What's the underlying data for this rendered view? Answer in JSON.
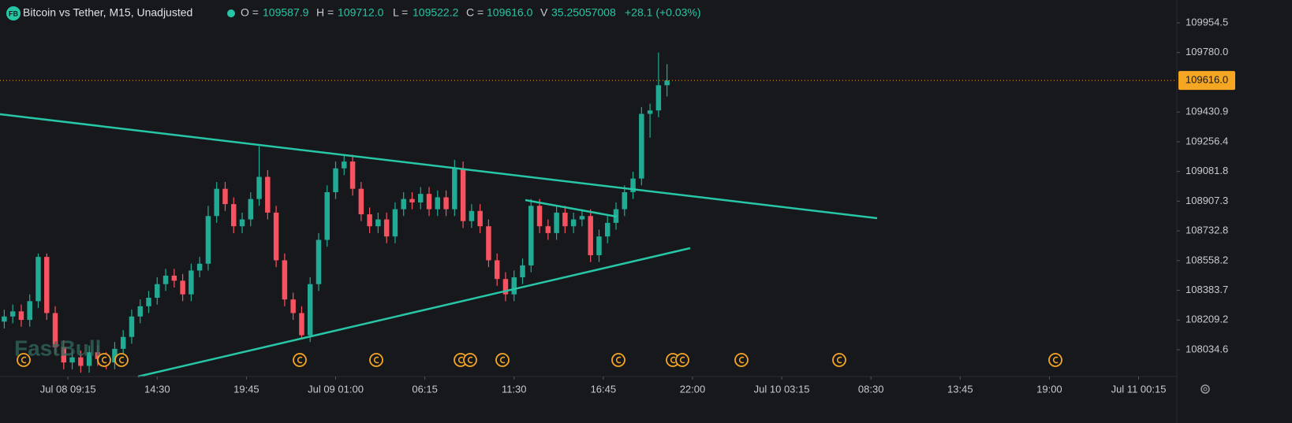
{
  "chart_data": {
    "type": "candlestick",
    "title": "Bitcoin vs Tether, M15, Unadjusted",
    "logo": "FB",
    "watermark": "FastBull",
    "header": {
      "open_label": "O =",
      "open": "109587.9",
      "high_label": "H =",
      "high": "109712.0",
      "low_label": "L =",
      "low": "109522.2",
      "close_label": "C =",
      "close": "109616.0",
      "volume_label": "V",
      "volume": "35.25057008",
      "change": "+28.1 (+0.03%)"
    },
    "up_color": "#22ab94",
    "down_color": "#f7525f",
    "line_color": "#26c6a6",
    "xlim": [
      -16,
      261
    ],
    "ylim": [
      107877.4,
      110088.7
    ],
    "xticks": [
      {
        "value": 0,
        "label": "Jul 08 09:15"
      },
      {
        "value": 21,
        "label": "14:30"
      },
      {
        "value": 42,
        "label": "19:45"
      },
      {
        "value": 63,
        "label": "Jul 09 01:00"
      },
      {
        "value": 84,
        "label": "06:15"
      },
      {
        "value": 105,
        "label": "11:30"
      },
      {
        "value": 126,
        "label": "16:45"
      },
      {
        "value": 147,
        "label": "22:00"
      },
      {
        "value": 168,
        "label": "Jul 10 03:15"
      },
      {
        "value": 189,
        "label": "08:30"
      },
      {
        "value": 210,
        "label": "13:45"
      },
      {
        "value": 231,
        "label": "19:00"
      },
      {
        "value": 252,
        "label": "Jul 11 00:15"
      }
    ],
    "yticks": [
      108034.6,
      108209.2,
      108383.7,
      108558.2,
      108732.8,
      108907.3,
      109081.8,
      109256.4,
      109430.9,
      {
        "value": 109780,
        "label": "109780.0"
      },
      109954.5
    ],
    "x": [
      -15,
      -13,
      -11,
      -9,
      -7,
      -5,
      -3,
      -1,
      1,
      3,
      5,
      7,
      9,
      11,
      13,
      15,
      17,
      19,
      21,
      23,
      25,
      27,
      29,
      31,
      33,
      35,
      37,
      39,
      41,
      43,
      45,
      47,
      49,
      51,
      53,
      55,
      57,
      59,
      61,
      63,
      65,
      67,
      69,
      71,
      73,
      75,
      77,
      79,
      81,
      83,
      85,
      87,
      89,
      91,
      93,
      95,
      97,
      99,
      101,
      103,
      105,
      107,
      109,
      111,
      113,
      115,
      117,
      119,
      121,
      123,
      125,
      127,
      129,
      131,
      133,
      135,
      137,
      139,
      141
    ],
    "open": [
      108200,
      108230,
      108260,
      108210,
      108320,
      108580,
      108250,
      108050,
      107960,
      107990,
      107940,
      108020,
      107980,
      107960,
      108040,
      108110,
      108230,
      108290,
      108340,
      108420,
      108470,
      108440,
      108360,
      108500,
      108540,
      108820,
      108980,
      108890,
      108760,
      108800,
      108920,
      109050,
      108840,
      108560,
      108330,
      108250,
      108120,
      108420,
      108680,
      108960,
      109100,
      109140,
      108980,
      108830,
      108760,
      108800,
      108700,
      108860,
      108920,
      108900,
      108950,
      108860,
      108930,
      108860,
      109100,
      108790,
      108850,
      108760,
      108560,
      108450,
      108360,
      108460,
      108530,
      108880,
      108760,
      108720,
      108840,
      108760,
      108800,
      108820,
      108590,
      108700,
      108780,
      108860,
      108960,
      109040,
      109420,
      109440,
      109587.9
    ],
    "high": [
      108270,
      108300,
      108300,
      108360,
      108600,
      108600,
      108290,
      108090,
      108030,
      108030,
      108060,
      108060,
      108020,
      108080,
      108150,
      108270,
      108330,
      108380,
      108460,
      108510,
      108510,
      108480,
      108540,
      108580,
      108880,
      109020,
      109020,
      108930,
      108840,
      108960,
      109230,
      109090,
      108880,
      108600,
      108370,
      108290,
      108460,
      108720,
      109000,
      109140,
      109180,
      109180,
      109020,
      108870,
      108840,
      108840,
      108900,
      108960,
      108960,
      108990,
      108990,
      108970,
      108970,
      109150,
      109140,
      108890,
      108890,
      108800,
      108600,
      108490,
      108500,
      108570,
      108920,
      108920,
      108800,
      108880,
      108880,
      108840,
      108860,
      108860,
      108740,
      108820,
      108900,
      109000,
      109080,
      109460,
      109480,
      109780,
      109712.0
    ],
    "low": [
      108160,
      108190,
      108170,
      108170,
      108280,
      108210,
      108010,
      107920,
      107920,
      107900,
      107900,
      107940,
      107920,
      107920,
      108000,
      108070,
      108190,
      108250,
      108300,
      108380,
      108400,
      108320,
      108320,
      108460,
      108500,
      108780,
      108850,
      108720,
      108720,
      108760,
      108880,
      108800,
      108520,
      108290,
      108210,
      108100,
      108080,
      108380,
      108640,
      108920,
      109060,
      108940,
      108790,
      108720,
      108720,
      108660,
      108660,
      108820,
      108860,
      108860,
      108820,
      108820,
      108820,
      108820,
      108750,
      108750,
      108720,
      108520,
      108410,
      108320,
      108320,
      108420,
      108490,
      108720,
      108680,
      108680,
      108720,
      108720,
      108760,
      108550,
      108550,
      108660,
      108740,
      108820,
      108920,
      109000,
      109280,
      109400,
      109522.2
    ],
    "close": [
      108230,
      108260,
      108210,
      108320,
      108580,
      108250,
      108050,
      107960,
      107990,
      107940,
      108020,
      107980,
      107960,
      108040,
      108110,
      108230,
      108290,
      108340,
      108420,
      108470,
      108440,
      108360,
      108500,
      108540,
      108820,
      108980,
      108890,
      108760,
      108800,
      108920,
      109050,
      108840,
      108560,
      108330,
      108250,
      108120,
      108420,
      108680,
      108960,
      109100,
      109140,
      108980,
      108830,
      108760,
      108800,
      108700,
      108860,
      108920,
      108900,
      108950,
      108860,
      108930,
      108860,
      109100,
      108790,
      108850,
      108760,
      108560,
      108450,
      108360,
      108460,
      108530,
      108880,
      108760,
      108720,
      108840,
      108760,
      108800,
      108820,
      108590,
      108700,
      108780,
      108860,
      108960,
      109040,
      109420,
      109440,
      109587.9,
      109616.0
    ]
  }
}
